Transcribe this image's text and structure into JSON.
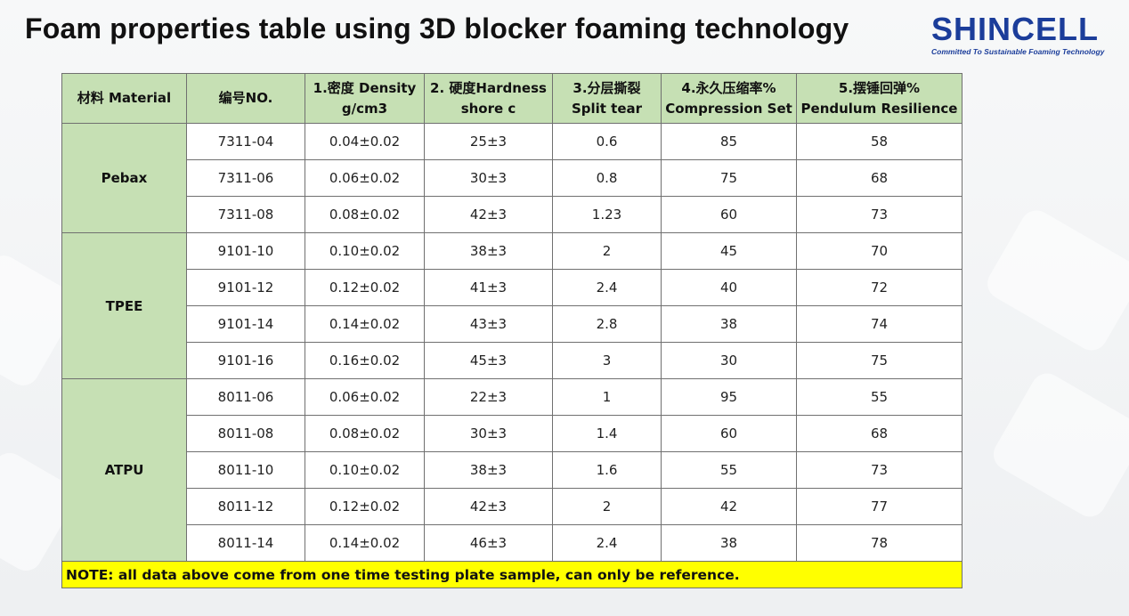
{
  "title": "Foam properties table using 3D blocker foaming technology",
  "logo": {
    "name": "SHINCELL",
    "tagline": "Committed To Sustainable Foaming Technology"
  },
  "colors": {
    "header_bg": "#c6e0b4",
    "note_bg": "#ffff00",
    "logo": "#1b3d9a"
  },
  "table": {
    "headers": [
      {
        "lines": [
          "材料 Material"
        ]
      },
      {
        "lines": [
          "编号NO."
        ]
      },
      {
        "lines": [
          "1.密度 Density",
          "g/cm3"
        ]
      },
      {
        "lines": [
          "2. 硬度Hardness",
          "shore c"
        ]
      },
      {
        "lines": [
          "3.分层撕裂",
          "Split tear"
        ]
      },
      {
        "lines": [
          "4.永久压缩率%",
          "Compression Set"
        ]
      },
      {
        "lines": [
          "5.摆锤回弹%",
          "Pendulum Resilience"
        ]
      }
    ],
    "groups": [
      {
        "material": "Pebax",
        "rows": [
          {
            "no": "7311-04",
            "density": "0.04±0.02",
            "hardness": "25±3",
            "split_tear": "0.6",
            "compression_set": "85",
            "resilience": "58"
          },
          {
            "no": "7311-06",
            "density": "0.06±0.02",
            "hardness": "30±3",
            "split_tear": "0.8",
            "compression_set": "75",
            "resilience": "68"
          },
          {
            "no": "7311-08",
            "density": "0.08±0.02",
            "hardness": "42±3",
            "split_tear": "1.23",
            "compression_set": "60",
            "resilience": "73"
          }
        ]
      },
      {
        "material": "TPEE",
        "rows": [
          {
            "no": "9101-10",
            "density": "0.10±0.02",
            "hardness": "38±3",
            "split_tear": "2",
            "compression_set": "45",
            "resilience": "70"
          },
          {
            "no": "9101-12",
            "density": "0.12±0.02",
            "hardness": "41±3",
            "split_tear": "2.4",
            "compression_set": "40",
            "resilience": "72"
          },
          {
            "no": "9101-14",
            "density": "0.14±0.02",
            "hardness": "43±3",
            "split_tear": "2.8",
            "compression_set": "38",
            "resilience": "74"
          },
          {
            "no": "9101-16",
            "density": "0.16±0.02",
            "hardness": "45±3",
            "split_tear": "3",
            "compression_set": "30",
            "resilience": "75"
          }
        ]
      },
      {
        "material": "ATPU",
        "rows": [
          {
            "no": "8011-06",
            "density": "0.06±0.02",
            "hardness": "22±3",
            "split_tear": "1",
            "compression_set": "95",
            "resilience": "55"
          },
          {
            "no": "8011-08",
            "density": "0.08±0.02",
            "hardness": "30±3",
            "split_tear": "1.4",
            "compression_set": "60",
            "resilience": "68"
          },
          {
            "no": "8011-10",
            "density": "0.10±0.02",
            "hardness": "38±3",
            "split_tear": "1.6",
            "compression_set": "55",
            "resilience": "73"
          },
          {
            "no": "8011-12",
            "density": "0.12±0.02",
            "hardness": "42±3",
            "split_tear": "2",
            "compression_set": "42",
            "resilience": "77"
          },
          {
            "no": "8011-14",
            "density": "0.14±0.02",
            "hardness": "46±3",
            "split_tear": "2.4",
            "compression_set": "38",
            "resilience": "78"
          }
        ]
      }
    ],
    "note": "NOTE: all data above come from one time testing plate sample, can only be reference."
  }
}
